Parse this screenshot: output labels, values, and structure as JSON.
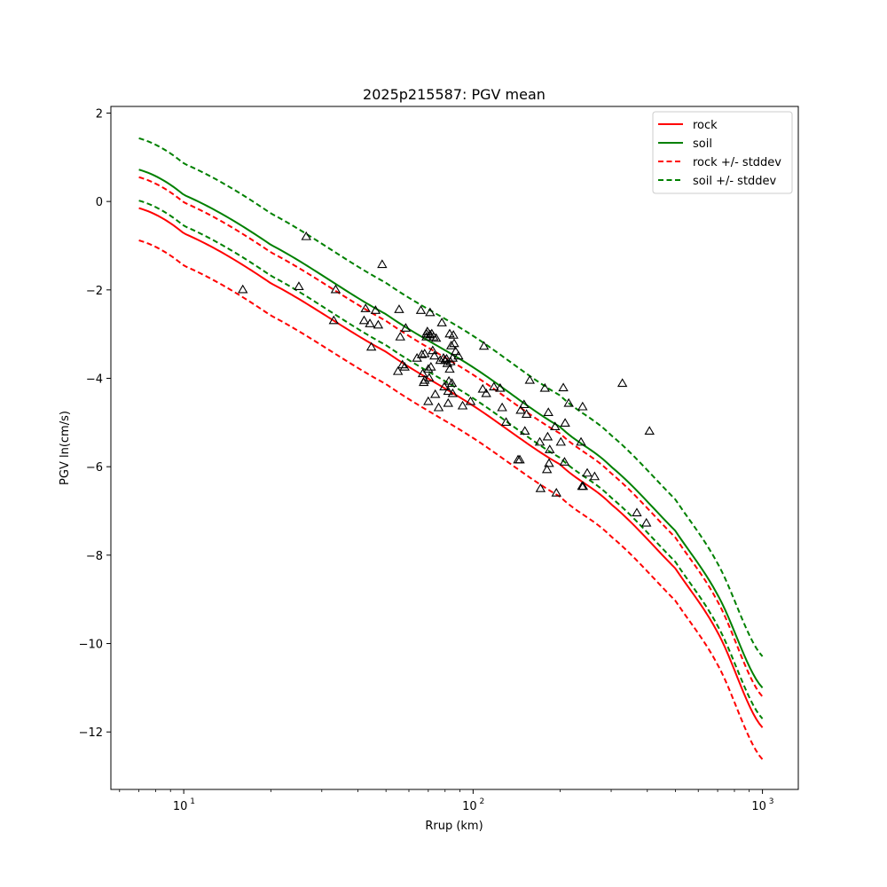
{
  "chart_data": {
    "type": "scatter",
    "title": "2025p215587: PGV mean",
    "xlabel": "Rrup (km)",
    "ylabel": "PGV ln(cm/s)",
    "xscale": "log",
    "xlim": [
      5.6,
      1330
    ],
    "ylim": [
      -13.3,
      2.15
    ],
    "x_ticks": [
      {
        "value": 10,
        "base": "10",
        "exp": "1"
      },
      {
        "value": 100,
        "base": "10",
        "exp": "2"
      },
      {
        "value": 1000,
        "base": "10",
        "exp": "3"
      }
    ],
    "y_ticks": [
      {
        "value": 2,
        "label": "2"
      },
      {
        "value": 0,
        "label": "0"
      },
      {
        "value": -2,
        "label": "−2"
      },
      {
        "value": -4,
        "label": "−4"
      },
      {
        "value": -6,
        "label": "−6"
      },
      {
        "value": -8,
        "label": "−8"
      },
      {
        "value": -10,
        "label": "−10"
      },
      {
        "value": -12,
        "label": "−12"
      }
    ],
    "grid": false,
    "legend_position": "top-right",
    "series": [
      {
        "name": "rock",
        "style": "solid",
        "color": "#ff0000",
        "x": [
          7,
          10,
          20,
          50,
          100,
          200,
          300,
          500,
          700,
          1000
        ],
        "y": [
          -0.15,
          -0.72,
          -1.85,
          -3.4,
          -4.62,
          -5.95,
          -6.85,
          -8.3,
          -9.75,
          -11.9
        ]
      },
      {
        "name": "soil",
        "style": "solid",
        "color": "#008000",
        "x": [
          7,
          10,
          20,
          50,
          100,
          200,
          300,
          500,
          700,
          1000
        ],
        "y": [
          0.72,
          0.15,
          -0.98,
          -2.55,
          -3.75,
          -5.1,
          -6.0,
          -7.45,
          -8.9,
          -11.0
        ]
      },
      {
        "name": "rock +/- stddev",
        "style": "dashed",
        "color": "#ff0000",
        "x": [
          7,
          10,
          20,
          50,
          100,
          200,
          300,
          500,
          700,
          1000
        ],
        "y": [
          0.55,
          -0.02,
          -1.15,
          -2.7,
          -3.92,
          -5.25,
          -6.15,
          -7.6,
          -9.05,
          -11.2
        ]
      },
      {
        "name": "",
        "style": "dashed",
        "color": "#ff0000",
        "x": [
          7,
          10,
          20,
          50,
          100,
          200,
          300,
          500,
          700,
          1000
        ],
        "y": [
          -0.88,
          -1.45,
          -2.58,
          -4.13,
          -5.35,
          -6.68,
          -7.58,
          -9.03,
          -10.48,
          -12.62
        ]
      },
      {
        "name": "soil +/- stddev",
        "style": "dashed",
        "color": "#008000",
        "x": [
          7,
          10,
          20,
          50,
          100,
          200,
          300,
          500,
          700,
          1000
        ],
        "y": [
          1.43,
          0.86,
          -0.27,
          -1.84,
          -3.04,
          -4.39,
          -5.29,
          -6.74,
          -8.19,
          -10.29
        ]
      },
      {
        "name": "",
        "style": "dashed",
        "color": "#008000",
        "x": [
          7,
          10,
          20,
          50,
          100,
          200,
          300,
          500,
          700,
          1000
        ],
        "y": [
          0.02,
          -0.55,
          -1.68,
          -3.25,
          -4.45,
          -5.8,
          -6.7,
          -8.15,
          -9.6,
          -11.7
        ]
      }
    ],
    "points": [
      {
        "x": 16,
        "y": -2.0
      },
      {
        "x": 25,
        "y": -1.93
      },
      {
        "x": 26.5,
        "y": -0.8
      },
      {
        "x": 33,
        "y": -2.7
      },
      {
        "x": 33.5,
        "y": -2.0
      },
      {
        "x": 42,
        "y": -2.7
      },
      {
        "x": 42.5,
        "y": -2.43
      },
      {
        "x": 44,
        "y": -2.77
      },
      {
        "x": 44.5,
        "y": -3.3
      },
      {
        "x": 46,
        "y": -2.47
      },
      {
        "x": 47,
        "y": -2.8
      },
      {
        "x": 48.5,
        "y": -1.43
      },
      {
        "x": 55,
        "y": -3.85
      },
      {
        "x": 55.5,
        "y": -2.45
      },
      {
        "x": 56,
        "y": -3.07
      },
      {
        "x": 57,
        "y": -3.7
      },
      {
        "x": 58,
        "y": -3.75
      },
      {
        "x": 58.5,
        "y": -2.87
      },
      {
        "x": 64,
        "y": -3.55
      },
      {
        "x": 66,
        "y": -2.47
      },
      {
        "x": 66.5,
        "y": -3.47
      },
      {
        "x": 67,
        "y": -3.9
      },
      {
        "x": 67.5,
        "y": -4.1
      },
      {
        "x": 68,
        "y": -3.45
      },
      {
        "x": 68,
        "y": -4.05
      },
      {
        "x": 69,
        "y": -3.0
      },
      {
        "x": 69,
        "y": -3.07
      },
      {
        "x": 69.5,
        "y": -2.95
      },
      {
        "x": 70,
        "y": -4.53
      },
      {
        "x": 70,
        "y": -3.8
      },
      {
        "x": 70.5,
        "y": -4.0
      },
      {
        "x": 71,
        "y": -2.52
      },
      {
        "x": 71,
        "y": -3.02
      },
      {
        "x": 71.5,
        "y": -3.75
      },
      {
        "x": 72,
        "y": -3.0
      },
      {
        "x": 72.5,
        "y": -3.38
      },
      {
        "x": 73,
        "y": -3.07
      },
      {
        "x": 73.5,
        "y": -3.5
      },
      {
        "x": 74,
        "y": -4.37
      },
      {
        "x": 74.5,
        "y": -3.1
      },
      {
        "x": 76,
        "y": -4.67
      },
      {
        "x": 77,
        "y": -3.6
      },
      {
        "x": 78,
        "y": -2.75
      },
      {
        "x": 79,
        "y": -3.55
      },
      {
        "x": 79.5,
        "y": -4.2
      },
      {
        "x": 80,
        "y": -3.6
      },
      {
        "x": 81,
        "y": -3.57
      },
      {
        "x": 81.5,
        "y": -3.67
      },
      {
        "x": 82,
        "y": -4.3
      },
      {
        "x": 82,
        "y": -4.57
      },
      {
        "x": 82.5,
        "y": -4.07
      },
      {
        "x": 83,
        "y": -3.8
      },
      {
        "x": 83,
        "y": -3.0
      },
      {
        "x": 83.5,
        "y": -3.63
      },
      {
        "x": 84,
        "y": -3.27
      },
      {
        "x": 84.5,
        "y": -4.12
      },
      {
        "x": 85,
        "y": -3.55
      },
      {
        "x": 85,
        "y": -4.35
      },
      {
        "x": 85.5,
        "y": -3.03
      },
      {
        "x": 86,
        "y": -3.22
      },
      {
        "x": 87,
        "y": -3.4
      },
      {
        "x": 89,
        "y": -3.5
      },
      {
        "x": 92,
        "y": -4.63
      },
      {
        "x": 98,
        "y": -4.53
      },
      {
        "x": 108,
        "y": -4.25
      },
      {
        "x": 109,
        "y": -3.28
      },
      {
        "x": 111,
        "y": -4.35
      },
      {
        "x": 118,
        "y": -4.2
      },
      {
        "x": 124,
        "y": -4.23
      },
      {
        "x": 126,
        "y": -4.67
      },
      {
        "x": 130,
        "y": -5.0
      },
      {
        "x": 143,
        "y": -5.85
      },
      {
        "x": 145,
        "y": -5.85
      },
      {
        "x": 146,
        "y": -4.73
      },
      {
        "x": 150,
        "y": -4.6
      },
      {
        "x": 151,
        "y": -5.2
      },
      {
        "x": 153,
        "y": -4.82
      },
      {
        "x": 157,
        "y": -4.05
      },
      {
        "x": 170,
        "y": -5.45
      },
      {
        "x": 171,
        "y": -6.5
      },
      {
        "x": 177,
        "y": -4.23
      },
      {
        "x": 180,
        "y": -6.07
      },
      {
        "x": 181,
        "y": -5.33
      },
      {
        "x": 182,
        "y": -4.78
      },
      {
        "x": 183,
        "y": -5.93
      },
      {
        "x": 184,
        "y": -5.62
      },
      {
        "x": 192,
        "y": -5.1
      },
      {
        "x": 194,
        "y": -6.6
      },
      {
        "x": 201,
        "y": -5.45
      },
      {
        "x": 205,
        "y": -4.22
      },
      {
        "x": 207,
        "y": -5.9
      },
      {
        "x": 208,
        "y": -5.02
      },
      {
        "x": 214,
        "y": -4.57
      },
      {
        "x": 236,
        "y": -5.45
      },
      {
        "x": 238,
        "y": -6.45
      },
      {
        "x": 239,
        "y": -4.65
      },
      {
        "x": 240,
        "y": -6.45
      },
      {
        "x": 248,
        "y": -6.15
      },
      {
        "x": 263,
        "y": -6.23
      },
      {
        "x": 328,
        "y": -4.12
      },
      {
        "x": 368,
        "y": -7.05
      },
      {
        "x": 397,
        "y": -7.28
      },
      {
        "x": 407,
        "y": -5.2
      }
    ]
  }
}
